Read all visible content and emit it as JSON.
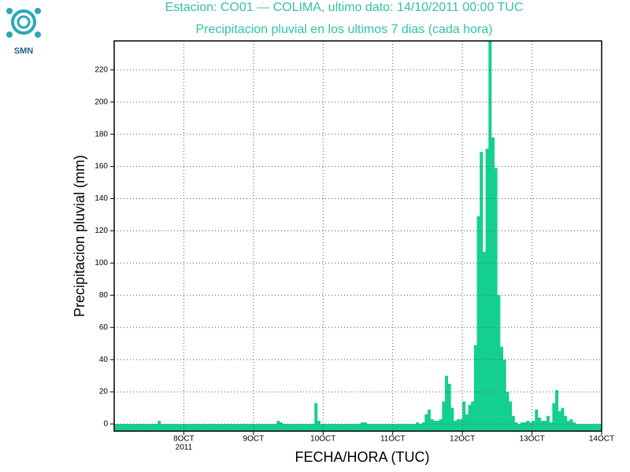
{
  "logo_text": "SMN",
  "chart_data": {
    "type": "bar",
    "title": "Estacion: CO01 — COLIMA, ultimo dato: 14/10/2011 00:00 TUC",
    "subtitle": "Precipitacion pluvial en los ultimos 7 dias (cada hora)",
    "ylabel": "Precipitacion pluvial (mm)",
    "xlabel": "FECHA/HORA (TUC)",
    "x_year_label": "2011",
    "color": "#14d08e",
    "title_color": "#33c3a3",
    "grid": true,
    "xlim": [
      0,
      168
    ],
    "xticks": [
      {
        "value": 24,
        "label": "8OCT"
      },
      {
        "value": 48,
        "label": "9OCT"
      },
      {
        "value": 72,
        "label": "10OCT"
      },
      {
        "value": 96,
        "label": "11OCT"
      },
      {
        "value": 120,
        "label": "12OCT"
      },
      {
        "value": 144,
        "label": "13OCT"
      },
      {
        "value": 168,
        "label": "14OCT"
      }
    ],
    "ylim": [
      -4.4,
      238
    ],
    "yticks": [
      0,
      20,
      40,
      60,
      80,
      100,
      120,
      140,
      160,
      180,
      200,
      220
    ],
    "values": [
      0,
      0,
      0,
      0,
      0,
      0,
      0,
      0,
      0,
      0,
      0,
      0,
      0,
      0,
      0,
      2,
      0,
      0,
      0,
      0,
      0,
      0,
      0,
      0,
      0,
      0,
      0,
      0,
      0,
      0,
      0,
      0,
      0,
      0,
      0,
      0,
      0,
      0,
      0,
      0,
      0,
      0,
      0,
      0,
      0,
      0,
      0,
      0,
      0,
      0,
      0,
      0,
      0,
      0,
      0,
      0,
      2,
      1,
      0,
      0,
      0,
      0,
      0,
      0,
      0,
      0,
      0,
      0,
      0,
      13,
      2,
      0,
      0,
      0,
      0,
      0,
      0,
      0,
      0,
      0,
      0,
      0,
      0,
      0,
      0,
      1,
      1,
      0,
      0,
      0,
      0,
      0,
      0,
      0,
      0,
      0,
      0,
      0,
      0,
      0,
      0,
      0,
      0,
      0,
      1,
      0,
      1,
      6,
      9,
      3,
      2,
      2,
      3,
      14,
      30,
      25,
      10,
      2,
      3,
      3,
      14,
      6,
      12,
      14,
      49,
      129,
      169,
      107,
      171,
      238,
      178,
      159,
      80,
      48,
      40,
      20,
      14,
      5,
      1,
      0,
      1,
      1,
      2,
      1,
      2,
      9,
      4,
      2,
      2,
      5,
      1,
      13,
      21,
      8,
      10,
      5,
      2,
      3,
      1,
      0,
      0,
      0,
      0,
      0,
      0,
      0,
      0,
      0
    ]
  }
}
